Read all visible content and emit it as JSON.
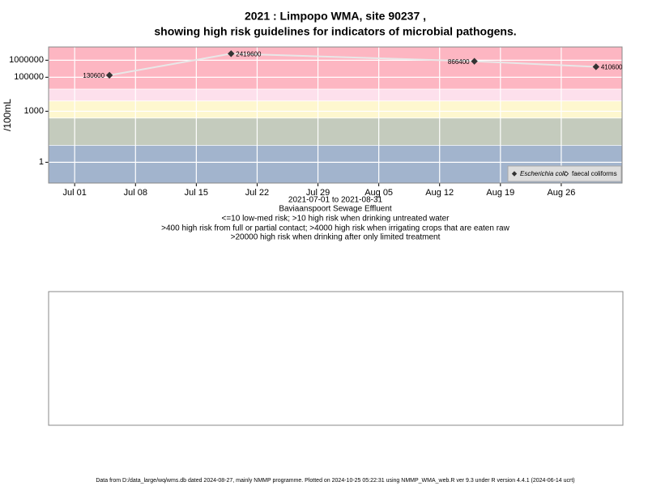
{
  "chart_data": {
    "type": "line",
    "title": [
      "2021 : Limpopo WMA, site 90237 ,",
      "showing high risk guidelines for indicators of microbial pathogens."
    ],
    "ylabel": "/100mL",
    "xlabel": [
      "2021-07-01 to 2021-08-31",
      "Baviaanspoort Sewage Effluent"
    ],
    "notes": [
      "<=10 low-med risk; >10 high risk when drinking untreated water",
      ">400 high risk from full or partial contact; >4000 high risk when irrigating crops that are eaten raw",
      ">20000 high risk when drinking after only limited treatment"
    ],
    "footer": "Data from D:/data_large/wq/wms.db dated 2024-08-27, mainly NMMP programme. Plotted on 2024-10-25 05:22:31 using NMMP_WMA_web.R ver 9.3 under R version 4.4.1 (2024-06-14 ucrt)",
    "x": [
      "2021-07-05",
      "2021-07-19",
      "2021-08-16",
      "2021-08-30"
    ],
    "series": [
      {
        "name": "Escherichia coli",
        "color": "#333333",
        "line_color": "#e8e8e8",
        "values": [
          130600,
          2419600,
          866400,
          410600
        ]
      },
      {
        "name": "faecal coliforms",
        "color": "#333333",
        "values": [
          null,
          null,
          null,
          null
        ]
      }
    ],
    "log_y": true,
    "ylim": [
      0.06,
      6000000
    ],
    "yticks": [
      1,
      1000,
      100000,
      1000000
    ],
    "xlim": [
      "2021-06-28",
      "2021-09-02"
    ],
    "xticks": [
      {
        "value": "2021-07-01",
        "label": "Jul 01"
      },
      {
        "value": "2021-07-08",
        "label": "Jul 08"
      },
      {
        "value": "2021-07-15",
        "label": "Jul 15"
      },
      {
        "value": "2021-07-22",
        "label": "Jul 22"
      },
      {
        "value": "2021-07-29",
        "label": "Jul 29"
      },
      {
        "value": "2021-08-05",
        "label": "Aug 05"
      },
      {
        "value": "2021-08-12",
        "label": "Aug 12"
      },
      {
        "value": "2021-08-19",
        "label": "Aug 19"
      },
      {
        "value": "2021-08-26",
        "label": "Aug 26"
      }
    ],
    "band_thresholds": [
      10,
      400,
      4000,
      20000
    ],
    "band_colors": [
      "#a2b4cd",
      "#c4cbbd",
      "#fef7cf",
      "#fde0ec",
      "#fdb6c2"
    ],
    "grid": true,
    "legend": "bottom-right"
  }
}
